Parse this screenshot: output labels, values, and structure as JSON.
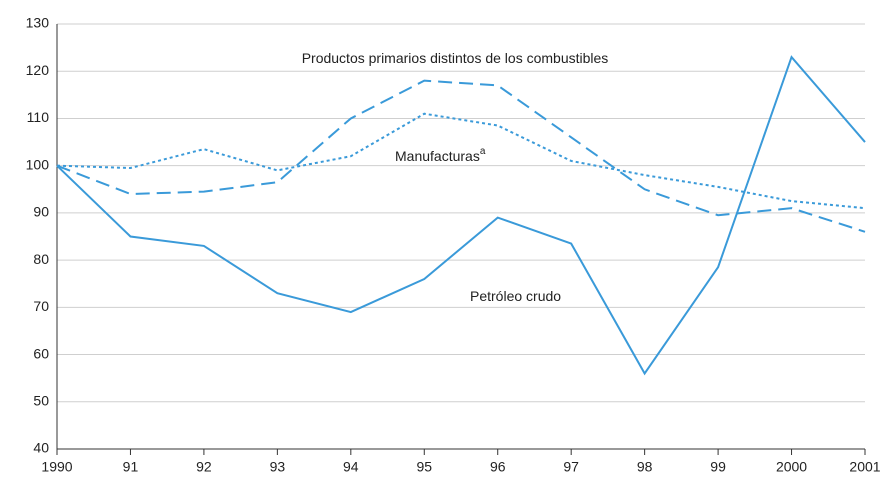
{
  "chart_data": {
    "type": "line",
    "categories": [
      "1990",
      "91",
      "92",
      "93",
      "94",
      "95",
      "96",
      "97",
      "98",
      "99",
      "2000",
      "2001"
    ],
    "series": [
      {
        "name": "Petróleo crudo",
        "color": "#3a9ad9",
        "dash": "solid",
        "values": [
          100,
          85,
          83,
          73,
          69,
          76,
          89,
          83.5,
          56,
          78.5,
          123,
          105
        ]
      },
      {
        "name": "Productos primarios distintos de los combustibles",
        "color": "#3a9ad9",
        "dash": "dashed",
        "values": [
          100,
          94,
          94.5,
          96.5,
          110,
          118,
          117,
          106,
          95,
          89.5,
          91,
          86
        ]
      },
      {
        "name": "Manufacturas",
        "note_marker": "a",
        "color": "#3a9ad9",
        "dash": "dotted",
        "values": [
          100,
          99.5,
          103.5,
          99,
          102,
          111,
          108.5,
          101,
          98,
          95.5,
          92.5,
          91
        ]
      }
    ],
    "ylim": [
      40,
      130
    ],
    "yticks": [
      40,
      50,
      60,
      70,
      80,
      90,
      100,
      110,
      120,
      130
    ],
    "grid": true
  }
}
